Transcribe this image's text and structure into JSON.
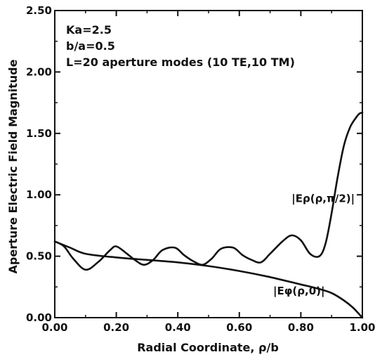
{
  "chart_data": {
    "type": "line",
    "title": "",
    "xlabel": "Radial Coordinate, ρ/b",
    "ylabel": "Aperture Electric Field Magnitude",
    "xlim": [
      0.0,
      1.0
    ],
    "ylim": [
      0.0,
      2.5
    ],
    "grid": false,
    "x_ticks": [
      "0.00",
      "0.20",
      "0.40",
      "0.60",
      "0.80",
      "1.00"
    ],
    "y_ticks": [
      "0.00",
      "0.50",
      "1.00",
      "1.50",
      "2.00",
      "2.50"
    ],
    "annotations": [
      "Ka=2.5",
      "b/a=0.5",
      "L=20 aperture modes (10 TE,10 TM)"
    ],
    "series": [
      {
        "name": "|Eρ(ρ,π/2)|",
        "color": "#111111",
        "x": [
          0.0,
          0.03,
          0.06,
          0.1,
          0.14,
          0.18,
          0.2,
          0.23,
          0.26,
          0.29,
          0.32,
          0.35,
          0.39,
          0.42,
          0.45,
          0.48,
          0.51,
          0.54,
          0.58,
          0.61,
          0.64,
          0.67,
          0.7,
          0.74,
          0.77,
          0.8,
          0.83,
          0.86,
          0.88,
          0.9,
          0.92,
          0.94,
          0.96,
          0.98,
          0.99,
          1.0
        ],
        "y": [
          0.62,
          0.58,
          0.48,
          0.39,
          0.45,
          0.55,
          0.58,
          0.53,
          0.47,
          0.43,
          0.47,
          0.55,
          0.57,
          0.51,
          0.46,
          0.43,
          0.48,
          0.56,
          0.57,
          0.51,
          0.47,
          0.45,
          0.52,
          0.62,
          0.67,
          0.63,
          0.52,
          0.5,
          0.6,
          0.85,
          1.15,
          1.4,
          1.55,
          1.63,
          1.66,
          1.67
        ]
      },
      {
        "name": "|Eφ(ρ,0)|",
        "color": "#111111",
        "x": [
          0.0,
          0.05,
          0.1,
          0.2,
          0.3,
          0.4,
          0.5,
          0.6,
          0.7,
          0.8,
          0.85,
          0.9,
          0.94,
          0.97,
          1.0
        ],
        "y": [
          0.62,
          0.57,
          0.52,
          0.49,
          0.47,
          0.45,
          0.42,
          0.38,
          0.33,
          0.27,
          0.24,
          0.2,
          0.14,
          0.08,
          0.0
        ]
      }
    ],
    "curve_labels": [
      {
        "text": "|Eρ(ρ,π/2)|",
        "x": 0.77,
        "y": 0.94
      },
      {
        "text": "|Eφ(ρ,0)|",
        "x": 0.71,
        "y": 0.19
      }
    ]
  }
}
